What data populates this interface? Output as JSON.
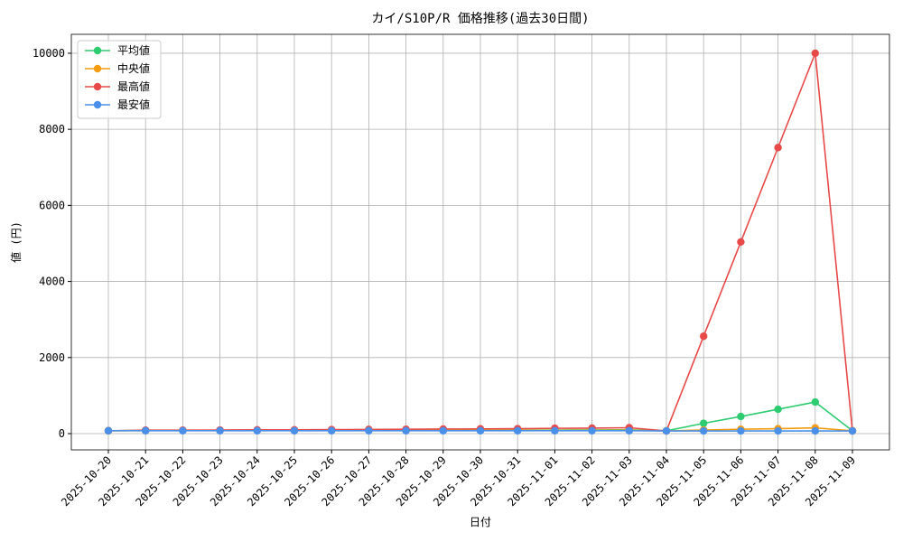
{
  "chart_data": {
    "type": "line",
    "title": "カイ/S10P/R 価格推移(過去30日間)",
    "x_label": "日付",
    "y_label": "値 (円)",
    "categories": [
      "2025-10-20",
      "2025-10-21",
      "2025-10-22",
      "2025-10-23",
      "2025-10-24",
      "2025-10-25",
      "2025-10-26",
      "2025-10-27",
      "2025-10-28",
      "2025-10-29",
      "2025-10-30",
      "2025-10-31",
      "2025-11-01",
      "2025-11-02",
      "2025-11-03",
      "2025-11-04",
      "2025-11-05",
      "2025-11-06",
      "2025-11-07",
      "2025-11-08",
      "2025-11-09"
    ],
    "series": [
      {
        "name": "平均値",
        "color": "#2ecc71",
        "values": [
          75,
          85,
          85,
          85,
          85,
          85,
          88,
          90,
          90,
          92,
          92,
          95,
          95,
          98,
          100,
          75,
          270,
          450,
          640,
          830,
          75
        ]
      },
      {
        "name": "中央値",
        "color": "#f39c12",
        "values": [
          75,
          80,
          80,
          80,
          80,
          80,
          82,
          82,
          82,
          84,
          84,
          85,
          85,
          86,
          88,
          72,
          95,
          115,
          130,
          150,
          75
        ]
      },
      {
        "name": "最高値",
        "color": "#e84a4a",
        "values": [
          75,
          90,
          90,
          95,
          100,
          100,
          105,
          110,
          115,
          120,
          125,
          130,
          140,
          145,
          155,
          70,
          2560,
          5040,
          7520,
          10000,
          70
        ]
      },
      {
        "name": "最安値",
        "color": "#4a90e8",
        "values": [
          75,
          75,
          75,
          75,
          75,
          75,
          75,
          75,
          75,
          75,
          75,
          75,
          75,
          75,
          75,
          70,
          70,
          70,
          70,
          70,
          70
        ]
      }
    ],
    "ylim": [
      -427,
      10497
    ],
    "yticks": [
      0,
      2000,
      4000,
      6000,
      8000,
      10000
    ],
    "grid": true,
    "legend": "upper-left"
  }
}
